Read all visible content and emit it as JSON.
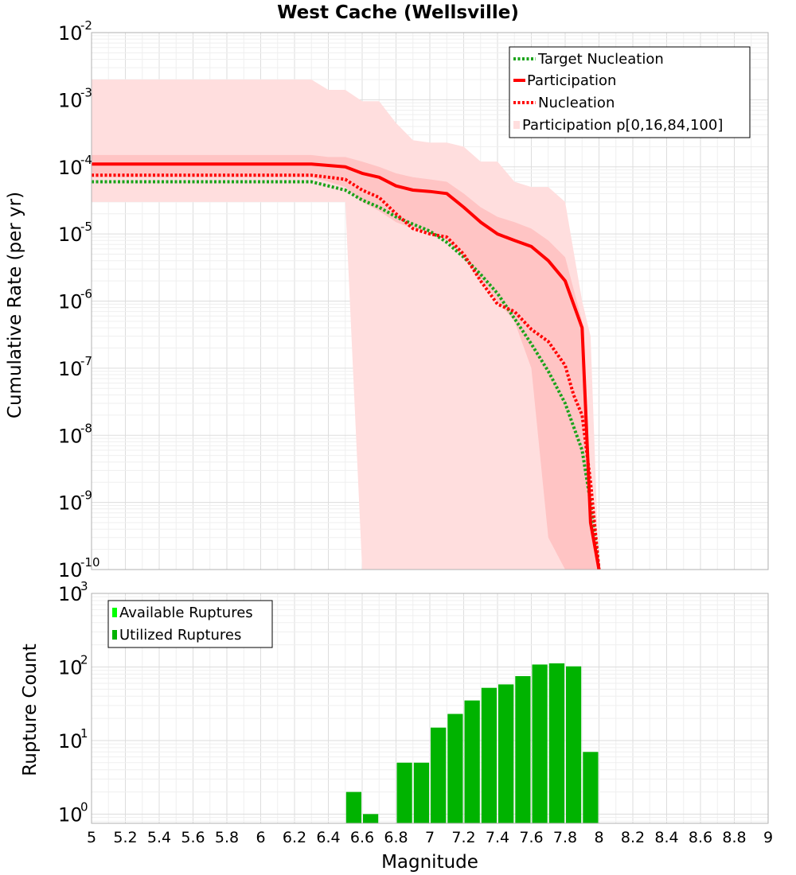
{
  "title": "West Cache (Wellsville)",
  "xlabel": "Magnitude",
  "colors": {
    "target_nucleation": "#1aa31a",
    "participation": "#ff0000",
    "nucleation": "#ff0000",
    "band_outer": "#ffdede",
    "band_inner": "#ffc4c4",
    "available": "#00ff00",
    "utilized": "#00b300",
    "grid_major": "#dddddd",
    "grid_minor": "#efefef"
  },
  "chart_data": [
    {
      "type": "line",
      "ylabel": "Cumulative Rate (per yr)",
      "y_scale": "log",
      "xlim": [
        5,
        9
      ],
      "ylim": [
        1e-10,
        0.01
      ],
      "legend_position": "top-right",
      "ytick_labels": [
        {
          "base": "10",
          "exp": "-10",
          "value": 1e-10
        },
        {
          "base": "10",
          "exp": "-9",
          "value": 1e-09
        },
        {
          "base": "10",
          "exp": "-8",
          "value": 1e-08
        },
        {
          "base": "10",
          "exp": "-7",
          "value": 1e-07
        },
        {
          "base": "10",
          "exp": "-6",
          "value": 1e-06
        },
        {
          "base": "10",
          "exp": "-5",
          "value": 1e-05
        },
        {
          "base": "10",
          "exp": "-4",
          "value": 0.0001
        },
        {
          "base": "10",
          "exp": "-3",
          "value": 0.001
        },
        {
          "base": "10",
          "exp": "-2",
          "value": 0.01
        }
      ],
      "series": [
        {
          "name": "Target Nucleation",
          "style": "dotted",
          "x": [
            5.0,
            6.3,
            6.5,
            6.6,
            6.7,
            6.8,
            6.9,
            7.0,
            7.1,
            7.2,
            7.3,
            7.4,
            7.5,
            7.6,
            7.7,
            7.8,
            7.9,
            7.95,
            8.0
          ],
          "y": [
            6e-05,
            6e-05,
            4.5e-05,
            3.2e-05,
            2.5e-05,
            1.8e-05,
            1.4e-05,
            1.1e-05,
            7.5e-06,
            4.5e-06,
            2.5e-06,
            1.3e-06,
            5.5e-07,
            2.3e-07,
            9e-08,
            3e-08,
            6e-09,
            1e-09,
            1e-10
          ]
        },
        {
          "name": "Participation",
          "style": "solid",
          "x": [
            5.0,
            6.3,
            6.4,
            6.5,
            6.6,
            6.7,
            6.8,
            6.9,
            7.0,
            7.1,
            7.2,
            7.3,
            7.4,
            7.5,
            7.6,
            7.7,
            7.8,
            7.9,
            7.95,
            8.0
          ],
          "y": [
            0.00011,
            0.00011,
            0.000105,
            0.0001,
            8e-05,
            7e-05,
            5.2e-05,
            4.5e-05,
            4.3e-05,
            4e-05,
            2.5e-05,
            1.5e-05,
            1e-05,
            8e-06,
            6.5e-06,
            4e-06,
            2e-06,
            4e-07,
            5e-10,
            1e-10
          ]
        },
        {
          "name": "Nucleation",
          "style": "dotted",
          "x": [
            5.0,
            6.3,
            6.4,
            6.5,
            6.6,
            6.7,
            6.8,
            6.9,
            7.0,
            7.1,
            7.2,
            7.3,
            7.4,
            7.5,
            7.6,
            7.7,
            7.8,
            7.85,
            7.9,
            7.95,
            8.0
          ],
          "y": [
            7.5e-05,
            7.5e-05,
            7e-05,
            6.5e-05,
            4.5e-05,
            3.5e-05,
            2e-05,
            1.2e-05,
            1e-05,
            9e-06,
            5e-06,
            2e-06,
            9e-07,
            7e-07,
            3.8e-07,
            2.5e-07,
            1.1e-07,
            4e-08,
            2e-08,
            2e-09,
            1e-10
          ]
        },
        {
          "name": "Participation p[0,16,84,100]",
          "style": "band",
          "x": [
            5.0,
            6.3,
            6.4,
            6.5,
            6.6,
            6.7,
            6.8,
            6.9,
            7.0,
            7.1,
            7.2,
            7.3,
            7.4,
            7.5,
            7.6,
            7.7,
            7.8,
            7.9,
            7.95,
            8.0
          ],
          "p0": [
            3e-05,
            3e-05,
            3e-05,
            3e-05,
            1e-10,
            1e-10,
            1e-10,
            1e-10,
            1e-10,
            1e-10,
            1e-10,
            1e-10,
            1e-10,
            1e-10,
            1e-10,
            1e-10,
            1e-10,
            1e-10,
            1e-10,
            1e-10
          ],
          "p16": [
            7e-05,
            7e-05,
            6e-05,
            5e-05,
            3e-05,
            2.2e-05,
            1.5e-05,
            1.2e-05,
            1e-05,
            8e-06,
            4.5e-06,
            2e-06,
            1e-06,
            5e-07,
            1e-07,
            3e-10,
            1e-10,
            1e-10,
            1e-10,
            1e-10
          ],
          "p84": [
            0.00015,
            0.00015,
            0.00014,
            0.00014,
            0.00012,
            0.0001,
            8e-05,
            7e-05,
            6.5e-05,
            6e-05,
            4e-05,
            2.5e-05,
            1.8e-05,
            1.5e-05,
            1.2e-05,
            8e-06,
            4.5e-06,
            5e-07,
            1e-09,
            1e-10
          ],
          "p100": [
            0.002,
            0.002,
            0.0014,
            0.0014,
            0.00095,
            0.00095,
            0.00045,
            0.00025,
            0.00023,
            0.00023,
            0.0002,
            0.00012,
            0.00012,
            6e-05,
            5e-05,
            5e-05,
            3e-05,
            1e-06,
            3e-07,
            1e-10
          ]
        }
      ]
    },
    {
      "type": "bar",
      "ylabel": "Rupture Count",
      "y_scale": "log",
      "xlim": [
        5,
        9
      ],
      "ylim": [
        0.75,
        1000
      ],
      "bar_width": 0.1,
      "legend_position": "top-left",
      "ytick_labels": [
        {
          "base": "10",
          "exp": "0",
          "value": 1
        },
        {
          "base": "10",
          "exp": "1",
          "value": 10
        },
        {
          "base": "10",
          "exp": "2",
          "value": 100
        },
        {
          "base": "10",
          "exp": "3",
          "value": 1000
        }
      ],
      "series": [
        {
          "name": "Available Ruptures",
          "x": [
            6.55,
            6.65,
            6.85,
            6.95,
            7.05,
            7.15,
            7.25,
            7.35,
            7.45,
            7.55,
            7.65,
            7.75,
            7.85,
            7.95
          ],
          "values": [
            2,
            1,
            5,
            5,
            15,
            23,
            35,
            52,
            58,
            75,
            108,
            112,
            102,
            7
          ]
        },
        {
          "name": "Utilized Ruptures",
          "x": [
            6.55,
            6.65,
            6.85,
            6.95,
            7.05,
            7.15,
            7.25,
            7.35,
            7.45,
            7.55,
            7.65,
            7.75,
            7.85,
            7.95
          ],
          "values": [
            2,
            1,
            5,
            5,
            15,
            23,
            35,
            52,
            58,
            75,
            108,
            112,
            102,
            7
          ]
        }
      ]
    }
  ],
  "xtick_labels": [
    "5",
    "5.2",
    "5.4",
    "5.6",
    "5.8",
    "6",
    "6.2",
    "6.4",
    "6.6",
    "6.8",
    "7",
    "7.2",
    "7.4",
    "7.6",
    "7.8",
    "8",
    "8.2",
    "8.4",
    "8.6",
    "8.8",
    "9"
  ]
}
